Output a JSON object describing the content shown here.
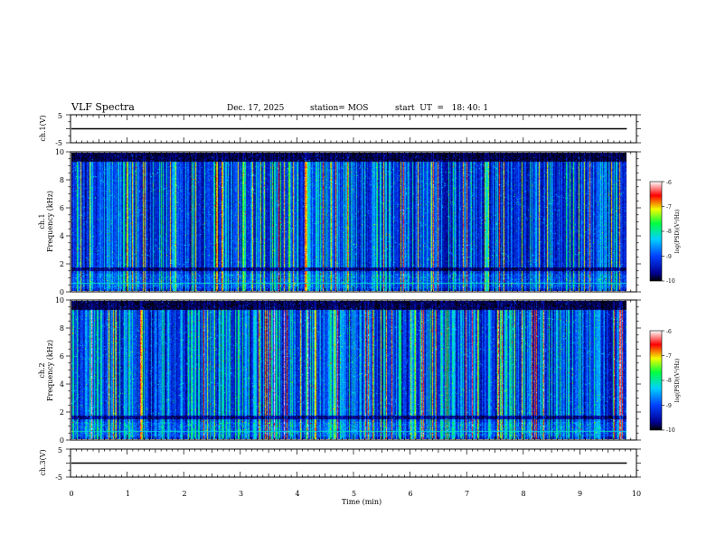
{
  "header": {
    "title": "VLF Spectra",
    "date": "Dec. 17, 2025",
    "station": "station= MOS",
    "start": "start  UT  =   18: 40: 1"
  },
  "chart_data": [
    {
      "id": "ch1_voltage",
      "type": "line",
      "ylabel": "ch.1(V)",
      "ylim": [
        -5,
        5
      ],
      "yticks": [
        "5",
        "-5"
      ],
      "x_end": 9.83,
      "level": 0
    },
    {
      "id": "ch1_spectrogram",
      "type": "heatmap",
      "ylabel_top": "ch.1",
      "ylabel": "Frequency (kHz)",
      "ylim": [
        0,
        10
      ],
      "yticks": [
        "0",
        "2",
        "4",
        "6",
        "8",
        "10"
      ],
      "xlim": [
        0,
        10
      ],
      "x_end": 9.83,
      "colorbar": {
        "label": "log(PSD)(V²/Hz)",
        "range": [
          -10,
          -6
        ],
        "ticks": [
          "-6",
          "-7",
          "-8",
          "-9",
          "-10"
        ]
      }
    },
    {
      "id": "ch2_spectrogram",
      "type": "heatmap",
      "ylabel_top": "ch.2",
      "ylabel": "Frequency (kHz)",
      "ylim": [
        0,
        10
      ],
      "yticks": [
        "0",
        "2",
        "4",
        "6",
        "8",
        "10"
      ],
      "xlim": [
        0,
        10
      ],
      "x_end": 9.83,
      "colorbar": {
        "label": "log(PSD)(V²/Hz)",
        "range": [
          -10,
          -6
        ],
        "ticks": [
          "-6",
          "-7",
          "-8",
          "-9",
          "-10"
        ]
      }
    },
    {
      "id": "ch3_voltage",
      "type": "line",
      "ylabel": "ch.3(V)",
      "ylim": [
        -5,
        5
      ],
      "yticks": [
        "5",
        "-5"
      ],
      "x_end": 9.83,
      "level": 0
    }
  ],
  "xaxis": {
    "label": "Time  (min)",
    "xlim": [
      0,
      10
    ],
    "ticks": [
      "0",
      "1",
      "2",
      "3",
      "4",
      "5",
      "6",
      "7",
      "8",
      "9",
      "10"
    ]
  }
}
